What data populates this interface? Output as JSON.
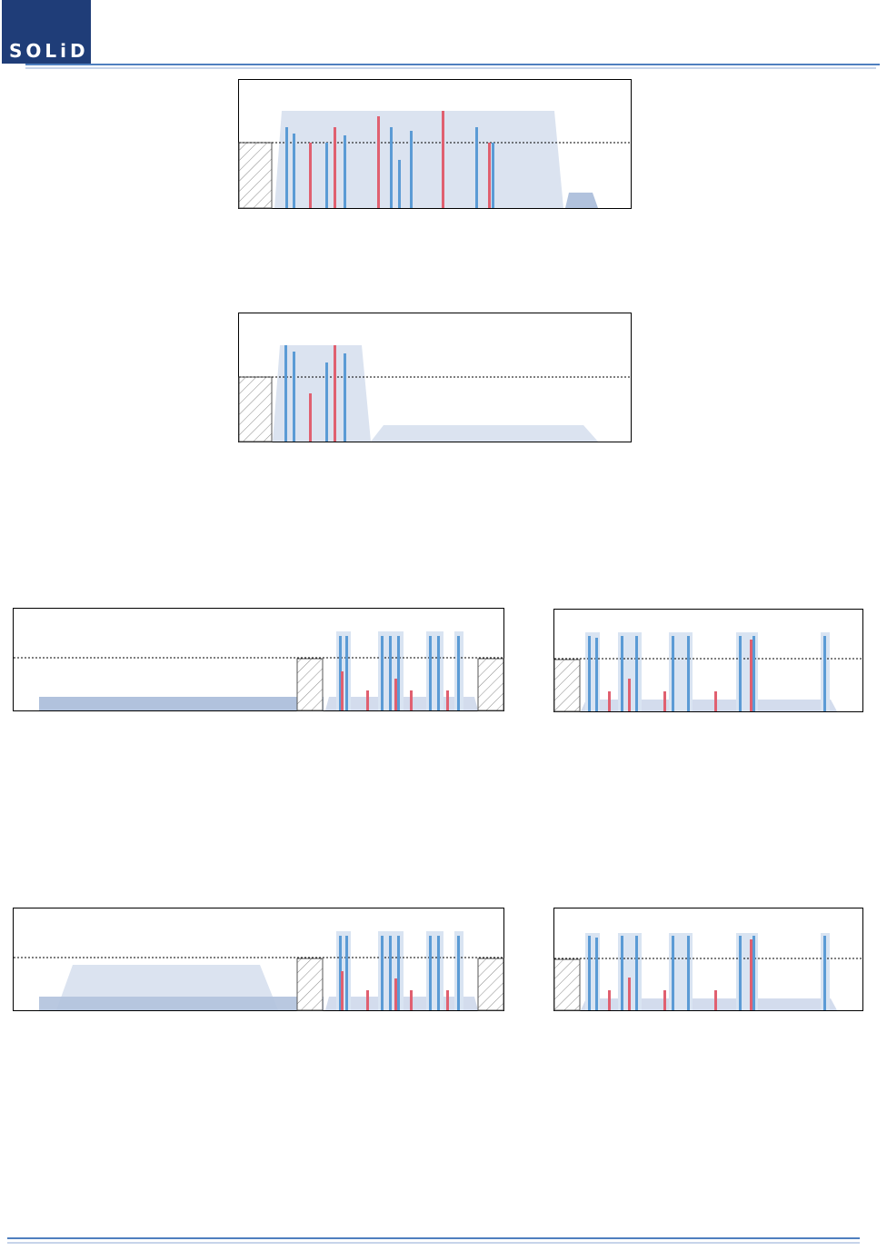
{
  "header": {
    "logo_text": "SOLiD"
  },
  "colors": {
    "brand": "#1f3d78",
    "rule": "#4f7fbf",
    "band_light": "#dbe3f0",
    "band_dark": "#b1c2dd",
    "carrier_blue": "#5b9bd5",
    "carrier_red": "#e06070",
    "border": "#000000"
  },
  "icons": {
    "hatched_block": "guard-band-hatch"
  }
}
